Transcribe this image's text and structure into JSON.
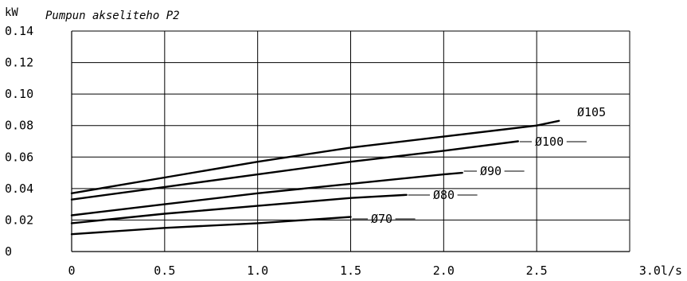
{
  "chart_data": {
    "type": "line",
    "title": "Pumpun akseliteho P2",
    "ylabel": "kW",
    "xlabel": "l/s",
    "xlim": [
      0,
      3.0
    ],
    "ylim": [
      0,
      0.14
    ],
    "x_ticks": [
      0,
      0.5,
      1.0,
      1.5,
      2.0,
      2.5,
      3.0
    ],
    "x_tick_labels": [
      "0",
      "0.5",
      "1.0",
      "1.5",
      "2.0",
      "2.5",
      "3.0l/s"
    ],
    "y_ticks": [
      0,
      0.02,
      0.04,
      0.06,
      0.08,
      0.1,
      0.12,
      0.14
    ],
    "y_tick_labels": [
      "0",
      "0.02",
      "0.04",
      "0.06",
      "0.08",
      "0.10",
      "0.12",
      "0.14"
    ],
    "grid": true,
    "series": [
      {
        "name": "Ø105",
        "x": [
          0,
          0.5,
          1.0,
          1.5,
          2.0,
          2.5,
          2.62
        ],
        "y": [
          0.037,
          0.047,
          0.057,
          0.066,
          0.073,
          0.08,
          0.083
        ]
      },
      {
        "name": "Ø100",
        "x": [
          0,
          0.5,
          1.0,
          1.5,
          2.0,
          2.4
        ],
        "y": [
          0.033,
          0.041,
          0.049,
          0.057,
          0.064,
          0.07
        ]
      },
      {
        "name": "Ø90",
        "x": [
          0,
          0.5,
          1.0,
          1.5,
          2.0,
          2.1
        ],
        "y": [
          0.023,
          0.03,
          0.037,
          0.043,
          0.049,
          0.05
        ]
      },
      {
        "name": "Ø80",
        "x": [
          0,
          0.5,
          1.0,
          1.5,
          1.8
        ],
        "y": [
          0.018,
          0.024,
          0.029,
          0.034,
          0.036
        ]
      },
      {
        "name": "Ø70",
        "x": [
          0,
          0.5,
          1.0,
          1.5
        ],
        "y": [
          0.011,
          0.015,
          0.018,
          0.022
        ]
      }
    ]
  }
}
